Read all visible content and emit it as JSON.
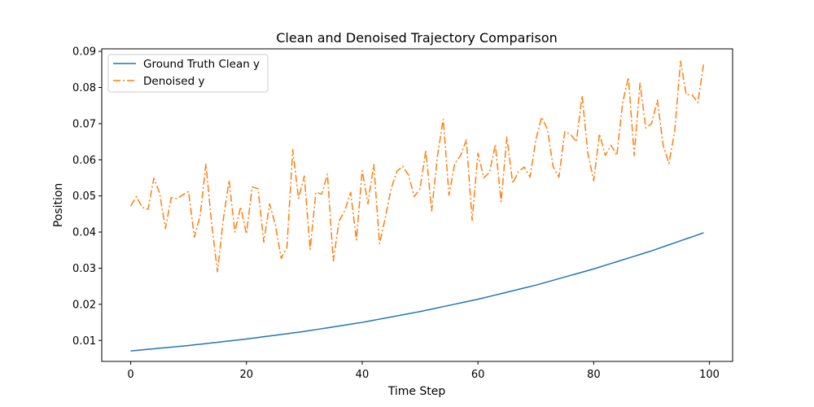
{
  "chart_data": {
    "type": "line",
    "title": "Clean and Denoised Trajectory Comparison",
    "xlabel": "Time Step",
    "ylabel": "Position",
    "xlim": [
      -5,
      104
    ],
    "ylim": [
      0.0042,
      0.0907
    ],
    "xticks": [
      0,
      20,
      40,
      60,
      80,
      100
    ],
    "xtick_labels": [
      "0",
      "20",
      "40",
      "60",
      "80",
      "100"
    ],
    "yticks": [
      0.01,
      0.02,
      0.03,
      0.04,
      0.05,
      0.06,
      0.07,
      0.08,
      0.09
    ],
    "ytick_labels": [
      "0.01",
      "0.02",
      "0.03",
      "0.04",
      "0.05",
      "0.06",
      "0.07",
      "0.08",
      "0.09"
    ],
    "grid": false,
    "legend_position": "upper-left",
    "series": [
      {
        "name": "Ground Truth Clean y",
        "color": "#1f77b4",
        "style": "solid",
        "x": [
          0,
          10,
          20,
          30,
          40,
          50,
          60,
          70,
          80,
          90,
          99
        ],
        "values": [
          0.0071,
          0.0086,
          0.0104,
          0.0125,
          0.015,
          0.018,
          0.0214,
          0.0253,
          0.0298,
          0.0348,
          0.0398
        ]
      },
      {
        "name": "Denoised y",
        "color": "#ff7f0e",
        "style": "dashdot",
        "x": [
          0,
          1,
          2,
          3,
          4,
          5,
          6,
          7,
          8,
          9,
          10,
          11,
          12,
          13,
          14,
          15,
          16,
          17,
          18,
          19,
          20,
          21,
          22,
          23,
          24,
          25,
          26,
          27,
          28,
          29,
          30,
          31,
          32,
          33,
          34,
          35,
          36,
          37,
          38,
          39,
          40,
          41,
          42,
          43,
          44,
          45,
          46,
          47,
          48,
          49,
          50,
          51,
          52,
          53,
          54,
          55,
          56,
          57,
          58,
          59,
          60,
          61,
          62,
          63,
          64,
          65,
          66,
          67,
          68,
          69,
          70,
          71,
          72,
          73,
          74,
          75,
          76,
          77,
          78,
          79,
          80,
          81,
          82,
          83,
          84,
          85,
          86,
          87,
          88,
          89,
          90,
          91,
          92,
          93,
          94,
          95,
          96,
          97,
          98,
          99
        ],
        "values": [
          0.0472,
          0.0498,
          0.0468,
          0.0463,
          0.0549,
          0.0508,
          0.041,
          0.0495,
          0.0492,
          0.0503,
          0.0512,
          0.0386,
          0.0445,
          0.0588,
          0.042,
          0.029,
          0.0435,
          0.0543,
          0.04,
          0.047,
          0.0395,
          0.0525,
          0.052,
          0.0372,
          0.0478,
          0.042,
          0.0327,
          0.0358,
          0.0628,
          0.0493,
          0.0555,
          0.0352,
          0.051,
          0.0505,
          0.056,
          0.032,
          0.043,
          0.046,
          0.051,
          0.0378,
          0.057,
          0.0478,
          0.0587,
          0.0368,
          0.044,
          0.052,
          0.0568,
          0.0582,
          0.0558,
          0.0498,
          0.052,
          0.0627,
          0.0458,
          0.061,
          0.0712,
          0.0502,
          0.059,
          0.0612,
          0.0655,
          0.0432,
          0.0618,
          0.055,
          0.0565,
          0.0642,
          0.0484,
          0.0663,
          0.0535,
          0.0567,
          0.058,
          0.0552,
          0.0655,
          0.0718,
          0.0685,
          0.058,
          0.0552,
          0.0678,
          0.067,
          0.065,
          0.0777,
          0.0618,
          0.0542,
          0.0672,
          0.0612,
          0.064,
          0.0612,
          0.0758,
          0.0828,
          0.0612,
          0.0812,
          0.0688,
          0.07,
          0.0765,
          0.064,
          0.059,
          0.068,
          0.0873,
          0.078,
          0.078,
          0.0758,
          0.0866
        ]
      }
    ]
  }
}
